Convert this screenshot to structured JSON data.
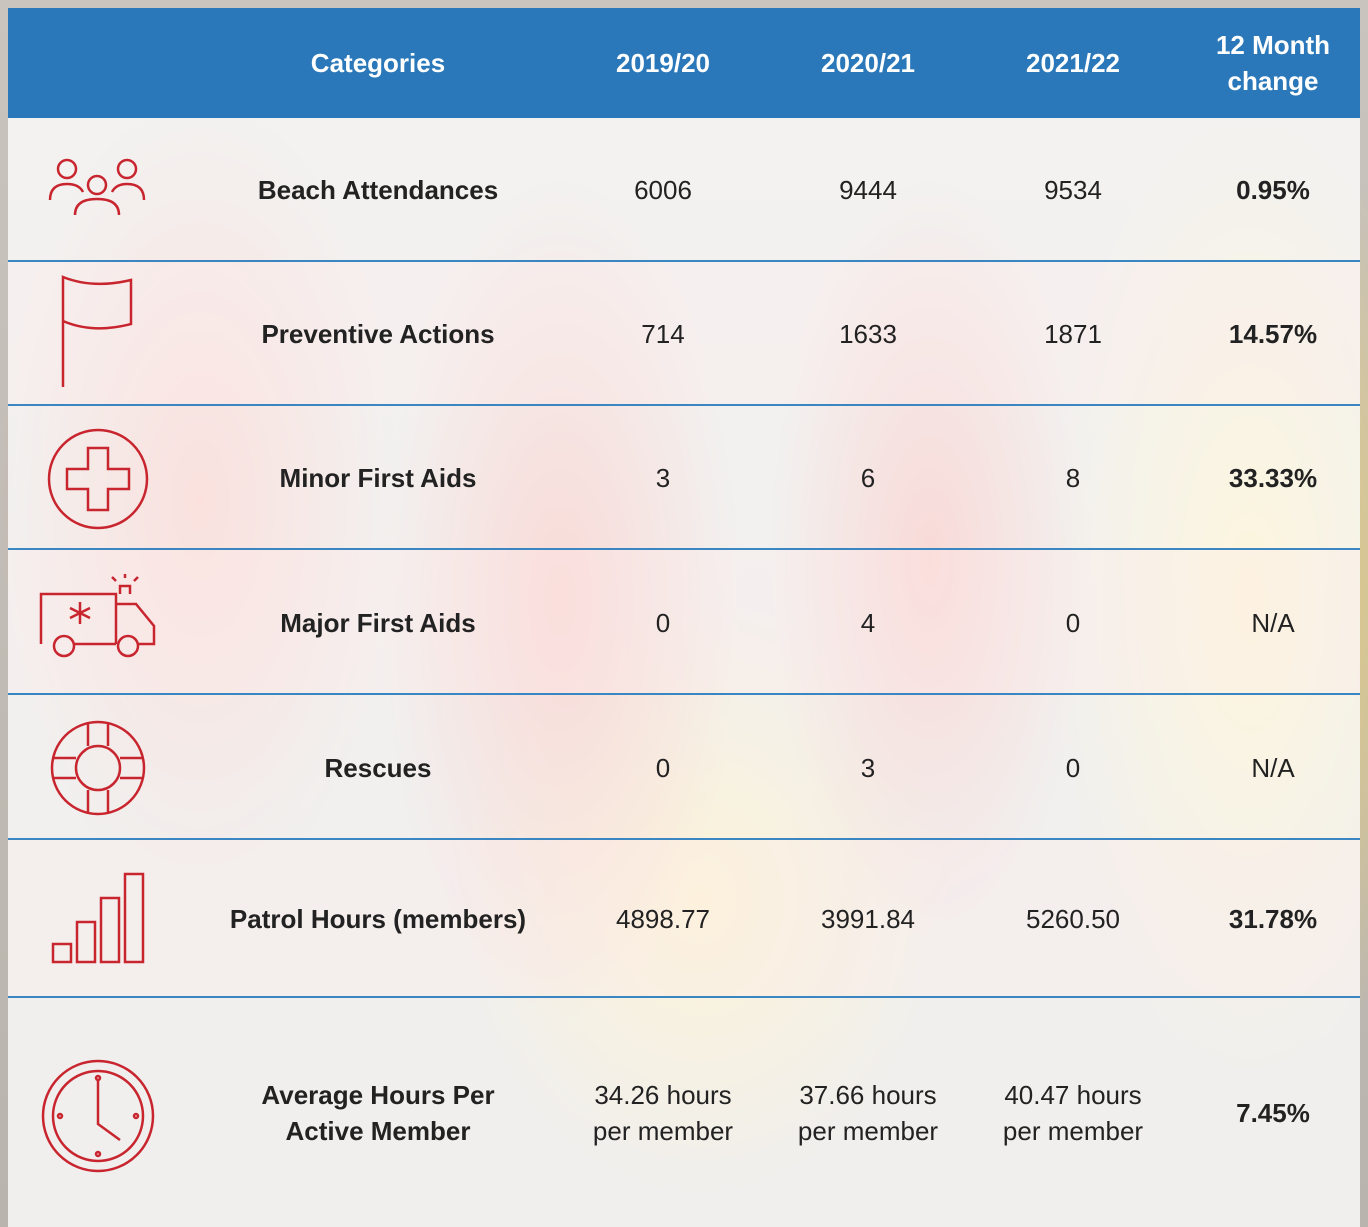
{
  "header": [
    "Categories",
    "2019/20",
    "2020/21",
    "2021/22",
    "12 Month change"
  ],
  "rows": [
    [
      "Beach Attendances",
      "6006",
      "9444",
      "9534",
      "0.95%"
    ],
    [
      "Preventive Actions",
      "714",
      "1633",
      "1871",
      "14.57%"
    ],
    [
      "Minor First Aids",
      "3",
      "6",
      "8",
      "33.33%"
    ],
    [
      "Major First Aids",
      "0",
      "4",
      "0",
      "N/A"
    ],
    [
      "Rescues",
      "0",
      "3",
      "0",
      "N/A"
    ],
    [
      "Patrol Hours (members)",
      "4898.77",
      "3991.84",
      "5260.50",
      "31.78%"
    ],
    [
      "Average Hours Per Active Member",
      "34.26 hours per member",
      "37.66 hours per member",
      "40.47 hours per member",
      "7.45%"
    ]
  ]
}
